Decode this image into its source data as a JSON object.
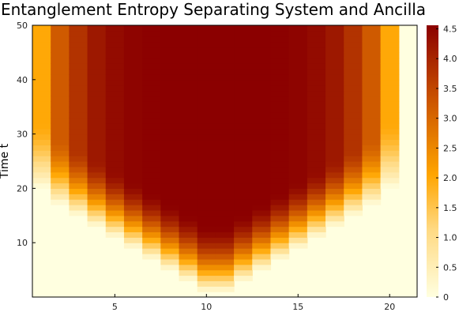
{
  "chart_data": {
    "type": "heatmap",
    "title": "Entanglement Entropy Separating System and Ancilla",
    "xlabel": "",
    "ylabel": "Time t",
    "xlim": [
      0.5,
      21.5
    ],
    "ylim": [
      0,
      50
    ],
    "x_ticks": [
      "5",
      "10",
      "15",
      "20"
    ],
    "y_ticks": [
      "10",
      "20",
      "30",
      "40",
      "50"
    ],
    "colorbar": {
      "min": 0,
      "max": 4.56,
      "ticks": [
        "0",
        "0.5",
        "1.0",
        "1.5",
        "2.0",
        "2.5",
        "3.0",
        "3.5",
        "4.0",
        "4.5"
      ],
      "colormap": [
        "#ffffe0",
        "#ffd982",
        "#ffa500",
        "#cc5500",
        "#8b0000"
      ]
    },
    "columns": [
      {
        "x": 1,
        "value": 2.0,
        "onset_t": 20
      },
      {
        "x": 2,
        "value": 3.2,
        "onset_t": 17
      },
      {
        "x": 3,
        "value": 3.8,
        "onset_t": 15
      },
      {
        "x": 4,
        "value": 4.2,
        "onset_t": 13
      },
      {
        "x": 5,
        "value": 4.4,
        "onset_t": 11
      },
      {
        "x": 6,
        "value": 4.5,
        "onset_t": 9
      },
      {
        "x": 7,
        "value": 4.55,
        "onset_t": 7
      },
      {
        "x": 8,
        "value": 4.56,
        "onset_t": 5
      },
      {
        "x": 9,
        "value": 4.56,
        "onset_t": 3
      },
      {
        "x": 10,
        "value": 4.56,
        "onset_t": 1
      },
      {
        "x": 11,
        "value": 4.56,
        "onset_t": 1
      },
      {
        "x": 12,
        "value": 4.56,
        "onset_t": 3
      },
      {
        "x": 13,
        "value": 4.56,
        "onset_t": 5
      },
      {
        "x": 14,
        "value": 4.55,
        "onset_t": 7
      },
      {
        "x": 15,
        "value": 4.5,
        "onset_t": 9
      },
      {
        "x": 16,
        "value": 4.4,
        "onset_t": 11
      },
      {
        "x": 17,
        "value": 4.2,
        "onset_t": 13
      },
      {
        "x": 18,
        "value": 3.8,
        "onset_t": 15
      },
      {
        "x": 19,
        "value": 3.2,
        "onset_t": 17
      },
      {
        "x": 20,
        "value": 2.0,
        "onset_t": 20
      },
      {
        "x": 21,
        "value": 0.0,
        "onset_t": 50
      }
    ]
  }
}
